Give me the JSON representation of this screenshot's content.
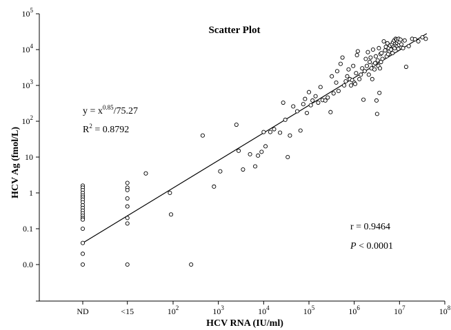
{
  "chart_data": {
    "type": "scatter",
    "title": "Scatter Plot",
    "xlabel": "HCV RNA (IU/ml)",
    "ylabel": "HCV Ag (fmol/L)",
    "x_categories": [
      "ND",
      "<15"
    ],
    "x_ticks": [
      {
        "label": "ND",
        "value": "ND"
      },
      {
        "label": "<15",
        "value": "<15"
      },
      {
        "base": "10",
        "exp": "2",
        "value": 100
      },
      {
        "base": "10",
        "exp": "3",
        "value": 1000
      },
      {
        "base": "10",
        "exp": "4",
        "value": 10000
      },
      {
        "base": "10",
        "exp": "5",
        "value": 100000
      },
      {
        "base": "10",
        "exp": "6",
        "value": 1000000
      },
      {
        "base": "10",
        "exp": "7",
        "value": 10000000
      },
      {
        "base": "10",
        "exp": "8",
        "value": 100000000
      }
    ],
    "y_scale": "log",
    "y_ticks": [
      {
        "label": "0.0",
        "value": 0.01
      },
      {
        "label": "0.1",
        "value": 0.1
      },
      {
        "label": "1",
        "value": 1
      },
      {
        "label": "10",
        "value": 10
      },
      {
        "base": "10",
        "exp": "2",
        "value": 100
      },
      {
        "base": "10",
        "exp": "3",
        "value": 1000
      },
      {
        "base": "10",
        "exp": "4",
        "value": 10000
      },
      {
        "base": "10",
        "exp": "5",
        "value": 100000
      }
    ],
    "fit_line": {
      "from": {
        "x": "ND",
        "y": 0.04
      },
      "to": {
        "x": 40000000,
        "y": 28000
      }
    },
    "equation": {
      "lhs": "y = x",
      "sup": "0.85",
      "rhs": "/75.27"
    },
    "r_squared": {
      "pre": "R",
      "sup": "2",
      "post": " = 0.8792"
    },
    "r_value": "r = 0.9464",
    "p_value": {
      "italic": "P",
      "rest": " < 0.0001"
    },
    "series": [
      {
        "points": [
          {
            "x": "ND",
            "y": 1.6
          },
          {
            "x": "ND",
            "y": 1.4
          },
          {
            "x": "ND",
            "y": 1.2
          },
          {
            "x": "ND",
            "y": 1.0
          },
          {
            "x": "ND",
            "y": 0.85
          },
          {
            "x": "ND",
            "y": 0.75
          },
          {
            "x": "ND",
            "y": 0.65
          },
          {
            "x": "ND",
            "y": 0.55
          },
          {
            "x": "ND",
            "y": 0.45
          },
          {
            "x": "ND",
            "y": 0.38
          },
          {
            "x": "ND",
            "y": 0.32
          },
          {
            "x": "ND",
            "y": 0.27
          },
          {
            "x": "ND",
            "y": 0.23
          },
          {
            "x": "ND",
            "y": 0.2
          },
          {
            "x": "ND",
            "y": 0.18
          },
          {
            "x": "ND",
            "y": 0.1
          },
          {
            "x": "ND",
            "y": 0.04
          },
          {
            "x": "ND",
            "y": 0.02
          },
          {
            "x": "ND",
            "y": 0.01
          },
          {
            "x": "<15",
            "y": 1.9
          },
          {
            "x": "<15",
            "y": 1.4
          },
          {
            "x": "<15",
            "y": 1.2
          },
          {
            "x": "<15",
            "y": 0.7
          },
          {
            "x": "<15",
            "y": 0.42
          },
          {
            "x": "<15",
            "y": 0.2
          },
          {
            "x": "<15",
            "y": 0.14
          },
          {
            "x": "<15",
            "y": 0.01
          },
          {
            "x": 25,
            "y": 3.5
          },
          {
            "x": 85,
            "y": 1.0
          },
          {
            "x": 90,
            "y": 0.25
          },
          {
            "x": 250,
            "y": 0.01
          },
          {
            "x": 450,
            "y": 40
          },
          {
            "x": 800,
            "y": 1.5
          },
          {
            "x": 1100,
            "y": 4
          },
          {
            "x": 2500,
            "y": 80
          },
          {
            "x": 2800,
            "y": 15
          },
          {
            "x": 3500,
            "y": 4.5
          },
          {
            "x": 5000,
            "y": 12
          },
          {
            "x": 6500,
            "y": 5.5
          },
          {
            "x": 7500,
            "y": 11
          },
          {
            "x": 9000,
            "y": 14
          },
          {
            "x": 10000,
            "y": 50
          },
          {
            "x": 11000,
            "y": 20
          },
          {
            "x": 14000,
            "y": 50
          },
          {
            "x": 17000,
            "y": 60
          },
          {
            "x": 23000,
            "y": 48
          },
          {
            "x": 27000,
            "y": 330
          },
          {
            "x": 30000,
            "y": 110
          },
          {
            "x": 34000,
            "y": 10
          },
          {
            "x": 38000,
            "y": 40
          },
          {
            "x": 45000,
            "y": 260
          },
          {
            "x": 55000,
            "y": 190
          },
          {
            "x": 65000,
            "y": 55
          },
          {
            "x": 75000,
            "y": 300
          },
          {
            "x": 82000,
            "y": 420
          },
          {
            "x": 90000,
            "y": 170
          },
          {
            "x": 100000,
            "y": 650
          },
          {
            "x": 110000,
            "y": 280
          },
          {
            "x": 120000,
            "y": 380
          },
          {
            "x": 140000,
            "y": 500
          },
          {
            "x": 160000,
            "y": 330
          },
          {
            "x": 180000,
            "y": 900
          },
          {
            "x": 200000,
            "y": 390
          },
          {
            "x": 230000,
            "y": 380
          },
          {
            "x": 260000,
            "y": 460
          },
          {
            "x": 300000,
            "y": 180
          },
          {
            "x": 320000,
            "y": 1800
          },
          {
            "x": 350000,
            "y": 600
          },
          {
            "x": 400000,
            "y": 1200
          },
          {
            "x": 420000,
            "y": 2500
          },
          {
            "x": 450000,
            "y": 700
          },
          {
            "x": 500000,
            "y": 4000
          },
          {
            "x": 550000,
            "y": 6000
          },
          {
            "x": 600000,
            "y": 1000
          },
          {
            "x": 650000,
            "y": 1300
          },
          {
            "x": 700000,
            "y": 1800
          },
          {
            "x": 750000,
            "y": 2800
          },
          {
            "x": 800000,
            "y": 1500
          },
          {
            "x": 850000,
            "y": 1000
          },
          {
            "x": 900000,
            "y": 1400
          },
          {
            "x": 950000,
            "y": 3500
          },
          {
            "x": 1000000,
            "y": 1200
          },
          {
            "x": 1050000,
            "y": 1100
          },
          {
            "x": 1100000,
            "y": 2200
          },
          {
            "x": 1150000,
            "y": 7000
          },
          {
            "x": 1200000,
            "y": 9000
          },
          {
            "x": 1300000,
            "y": 1500
          },
          {
            "x": 1400000,
            "y": 2000
          },
          {
            "x": 1500000,
            "y": 3000
          },
          {
            "x": 1600000,
            "y": 400
          },
          {
            "x": 1700000,
            "y": 2500
          },
          {
            "x": 1800000,
            "y": 5500
          },
          {
            "x": 1900000,
            "y": 3500
          },
          {
            "x": 2000000,
            "y": 8500
          },
          {
            "x": 2100000,
            "y": 2000
          },
          {
            "x": 2200000,
            "y": 4500
          },
          {
            "x": 2300000,
            "y": 6000
          },
          {
            "x": 2400000,
            "y": 3000
          },
          {
            "x": 2500000,
            "y": 1500
          },
          {
            "x": 2600000,
            "y": 10000
          },
          {
            "x": 2700000,
            "y": 3800
          },
          {
            "x": 2800000,
            "y": 2800
          },
          {
            "x": 2900000,
            "y": 4200
          },
          {
            "x": 3000000,
            "y": 6500
          },
          {
            "x": 3100000,
            "y": 380
          },
          {
            "x": 3200000,
            "y": 160
          },
          {
            "x": 3300000,
            "y": 5000
          },
          {
            "x": 3400000,
            "y": 3500
          },
          {
            "x": 3500000,
            "y": 11000
          },
          {
            "x": 3600000,
            "y": 620
          },
          {
            "x": 3700000,
            "y": 3000
          },
          {
            "x": 3800000,
            "y": 7500
          },
          {
            "x": 3900000,
            "y": 4500
          },
          {
            "x": 4000000,
            "y": 8000
          },
          {
            "x": 4200000,
            "y": 5500
          },
          {
            "x": 4500000,
            "y": 17000
          },
          {
            "x": 4800000,
            "y": 9500
          },
          {
            "x": 5000000,
            "y": 12000
          },
          {
            "x": 5200000,
            "y": 6500
          },
          {
            "x": 5400000,
            "y": 15000
          },
          {
            "x": 5600000,
            "y": 7500
          },
          {
            "x": 5800000,
            "y": 11000
          },
          {
            "x": 6000000,
            "y": 9000
          },
          {
            "x": 6200000,
            "y": 13000
          },
          {
            "x": 6500000,
            "y": 10000
          },
          {
            "x": 6800000,
            "y": 14000
          },
          {
            "x": 7000000,
            "y": 8000
          },
          {
            "x": 7200000,
            "y": 16000
          },
          {
            "x": 7400000,
            "y": 12000
          },
          {
            "x": 7600000,
            "y": 18000
          },
          {
            "x": 7800000,
            "y": 11000
          },
          {
            "x": 8000000,
            "y": 14500
          },
          {
            "x": 8200000,
            "y": 20000
          },
          {
            "x": 8400000,
            "y": 13000
          },
          {
            "x": 8600000,
            "y": 19000
          },
          {
            "x": 8800000,
            "y": 15500
          },
          {
            "x": 9000000,
            "y": 12500
          },
          {
            "x": 9200000,
            "y": 17500
          },
          {
            "x": 9400000,
            "y": 10500
          },
          {
            "x": 9600000,
            "y": 20000
          },
          {
            "x": 9800000,
            "y": 13500
          },
          {
            "x": 10000000,
            "y": 16000
          },
          {
            "x": 10500000,
            "y": 19000
          },
          {
            "x": 11000000,
            "y": 14000
          },
          {
            "x": 12000000,
            "y": 11000
          },
          {
            "x": 13000000,
            "y": 18000
          },
          {
            "x": 14000000,
            "y": 3300
          },
          {
            "x": 16000000,
            "y": 12500
          },
          {
            "x": 19000000,
            "y": 20000
          },
          {
            "x": 22000000,
            "y": 19500
          },
          {
            "x": 26000000,
            "y": 17000
          },
          {
            "x": 32000000,
            "y": 22000
          },
          {
            "x": 38000000,
            "y": 20000
          }
        ]
      }
    ]
  }
}
